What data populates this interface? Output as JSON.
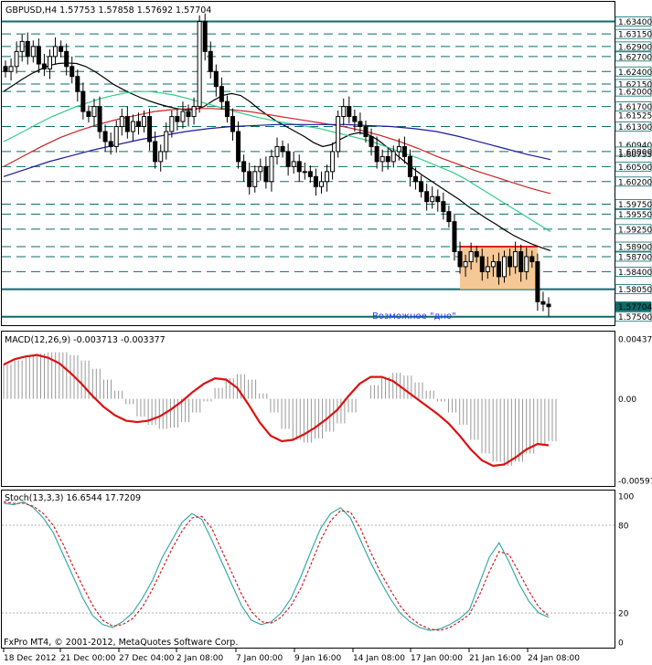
{
  "window": {
    "symbol_line": "GBPUSD,H4  1.57753 1.57858 1.57692 1.57704",
    "watermark": "FxPro MT4, © 2001-2012, MetaQuotes Software Corp."
  },
  "colors": {
    "background": "#ffffff",
    "candle": "#000000",
    "level_line": "#0b6b6b",
    "ma_black": "#000000",
    "ma_green": "#33cc88",
    "ma_red": "#cc2222",
    "ma_blue": "#1a1a99",
    "zone_fill": "#f5c896",
    "resistance": "#e02020",
    "annotation": "#1c3cff",
    "macd_hist": "#999999",
    "macd_signal": "#dd1111",
    "stoch_main": "#2ba3a3",
    "stoch_signal": "#cc1111",
    "price_tag": "#0b6b6b"
  },
  "chart_data": [
    {
      "type": "candlestick",
      "panel": "price",
      "title": "GBPUSD,H4  1.57753 1.57858 1.57692 1.57704",
      "ylim": [
        1.5744,
        1.6355
      ],
      "price_labels": [
        "1.63400",
        "1.63150",
        "1.62900",
        "1.62700",
        "1.62400",
        "1.62150",
        "1.62000",
        "1.61700",
        "1.61525",
        "1.61300",
        "1.60940",
        "1.60800",
        "1.60755",
        "1.60500",
        "1.60200",
        "1.59750",
        "1.59550",
        "1.59250",
        "1.58900",
        "1.58700",
        "1.58400",
        "1.58050",
        "1.57704",
        "1.57500"
      ],
      "levels": [
        1.634,
        1.6315,
        1.629,
        1.627,
        1.624,
        1.6215,
        1.62,
        1.617,
        1.613,
        1.608,
        1.605,
        1.602,
        1.5975,
        1.5955,
        1.5925,
        1.589,
        1.587,
        1.584,
        1.5805,
        1.575
      ],
      "solid_levels": [
        1.634,
        1.5805,
        1.575
      ],
      "current_price": "1.57704",
      "resistance": 1.589,
      "zone": {
        "from_price": 1.5805,
        "to_price": 1.589
      },
      "annotation": "Возможное \"дно\"",
      "x_labels": [
        "18 Dec 2012",
        "21 Dec 00:00",
        "27 Dec 04:00",
        "2 Jan 08:00",
        "7 Jan 00:00",
        "9 Jan 16:00",
        "14 Jan 08:00",
        "17 Jan 00:00",
        "21 Jan 16:00",
        "24 Jan 08:00"
      ],
      "closes": [
        1.624,
        1.625,
        1.628,
        1.63,
        1.627,
        1.629,
        1.6255,
        1.6245,
        1.627,
        1.629,
        1.628,
        1.625,
        1.623,
        1.62,
        1.616,
        1.615,
        1.617,
        1.612,
        1.61,
        1.609,
        1.613,
        1.615,
        1.612,
        1.614,
        1.613,
        1.615,
        1.61,
        1.606,
        1.608,
        1.612,
        1.615,
        1.614,
        1.616,
        1.615,
        1.617,
        1.634,
        1.628,
        1.624,
        1.621,
        1.618,
        1.615,
        1.612,
        1.606,
        1.604,
        1.601,
        1.604,
        1.605,
        1.602,
        1.607,
        1.609,
        1.608,
        1.605,
        1.606,
        1.604,
        1.604,
        1.603,
        1.601,
        1.602,
        1.604,
        1.608,
        1.615,
        1.617,
        1.615,
        1.614,
        1.613,
        1.611,
        1.609,
        1.606,
        1.607,
        1.606,
        1.608,
        1.609,
        1.607,
        1.603,
        1.602,
        1.6,
        1.598,
        1.599,
        1.598,
        1.596,
        1.594,
        1.588,
        1.585,
        1.586,
        1.588,
        1.587,
        1.584,
        1.585,
        1.586,
        1.583,
        1.587,
        1.585,
        1.588,
        1.584,
        1.587,
        1.586,
        1.578,
        1.5775,
        1.577
      ],
      "series": [
        {
          "name": "",
          "color_key": "ma_black",
          "values": [
            1.62,
            1.6212,
            1.6224,
            1.6235,
            1.6244,
            1.6252,
            1.6256,
            1.6257,
            1.6256,
            1.625,
            1.624,
            1.6228,
            1.6215,
            1.6205,
            1.6196,
            1.6188,
            1.6181,
            1.6175,
            1.617,
            1.6166,
            1.6163,
            1.6164,
            1.617,
            1.6182,
            1.6192,
            1.6196,
            1.6192,
            1.618,
            1.6165,
            1.6152,
            1.614,
            1.613,
            1.612,
            1.611,
            1.6098,
            1.609,
            1.6094,
            1.6105,
            1.6114,
            1.6118,
            1.6114,
            1.6104,
            1.609,
            1.6075,
            1.606,
            1.6045,
            1.6032,
            1.602,
            1.6008,
            1.5996,
            1.5984,
            1.597,
            1.5958,
            1.5946,
            1.5935,
            1.5923,
            1.5912,
            1.5903,
            1.5895,
            1.5888,
            1.5882
          ]
        },
        {
          "name": "",
          "color_key": "ma_green",
          "values": [
            1.61,
            1.6112,
            1.6125,
            1.6138,
            1.615,
            1.616,
            1.617,
            1.6178,
            1.6186,
            1.6192,
            1.6197,
            1.62,
            1.62,
            1.6197,
            1.6193,
            1.6187,
            1.618,
            1.6174,
            1.6167,
            1.616,
            1.6154,
            1.6148,
            1.6143,
            1.6138,
            1.6134,
            1.613,
            1.6126,
            1.612,
            1.6114,
            1.6108,
            1.6102,
            1.6094,
            1.6085,
            1.6076,
            1.6068,
            1.6058,
            1.6048,
            1.6038,
            1.6025,
            1.601,
            1.5995,
            1.598,
            1.5965,
            1.595,
            1.5935,
            1.592
          ]
        },
        {
          "name": "",
          "color_key": "ma_red",
          "values": [
            1.605,
            1.607,
            1.609,
            1.6108,
            1.6122,
            1.6134,
            1.6144,
            1.6152,
            1.616,
            1.6164,
            1.6166,
            1.6166,
            1.6164,
            1.616,
            1.6154,
            1.6148,
            1.6142,
            1.6136,
            1.613,
            1.6122,
            1.6112,
            1.61,
            1.6086,
            1.607,
            1.6056,
            1.6042,
            1.603,
            1.6018,
            1.6006,
            1.5996
          ]
        },
        {
          "name": "",
          "color_key": "ma_blue",
          "values": [
            1.603,
            1.6045,
            1.606,
            1.6072,
            1.6084,
            1.6094,
            1.6104,
            1.6112,
            1.612,
            1.6126,
            1.613,
            1.6132,
            1.6134,
            1.6134,
            1.6134,
            1.6134,
            1.6132,
            1.613,
            1.6126,
            1.612,
            1.611,
            1.6098,
            1.6086,
            1.6074,
            1.6064
          ]
        }
      ]
    },
    {
      "type": "histogram_line",
      "panel": "macd",
      "title": "MACD(12,26,9) -0.003713 -0.003377",
      "tick_labels": [
        "0.004379",
        "0.00",
        "-0.00597"
      ],
      "ylim": [
        -0.00597,
        0.004379
      ],
      "histogram": [
        0.0025,
        0.0028,
        0.0031,
        0.0033,
        0.0034,
        0.0034,
        0.0032,
        0.0028,
        0.0022,
        0.0014,
        0.0006,
        -0.0004,
        -0.0013,
        -0.0019,
        -0.0022,
        -0.0021,
        -0.0017,
        -0.001,
        -0.0002,
        0.0008,
        0.0015,
        0.0018,
        0.0014,
        0.0004,
        -0.001,
        -0.0022,
        -0.003,
        -0.0032,
        -0.0029,
        -0.0024,
        -0.0018,
        -0.001,
        0.0,
        0.001,
        0.0016,
        0.0019,
        0.0017,
        0.0012,
        0.0006,
        -0.0002,
        -0.001,
        -0.0019,
        -0.003,
        -0.004,
        -0.0046,
        -0.0049,
        -0.0046,
        -0.004,
        -0.0034,
        -0.0031
      ],
      "signal": [
        0.0025,
        0.0029,
        0.0031,
        0.0032,
        0.003,
        0.0026,
        0.0019,
        0.0011,
        0.0002,
        -0.0006,
        -0.0012,
        -0.0016,
        -0.0017,
        -0.0016,
        -0.0013,
        -0.0008,
        -0.0002,
        0.0005,
        0.0011,
        0.0015,
        0.0014,
        0.0008,
        -0.0004,
        -0.0017,
        -0.0027,
        -0.0031,
        -0.003,
        -0.0026,
        -0.0021,
        -0.0015,
        -0.0008,
        0.0002,
        0.0011,
        0.0016,
        0.0016,
        0.0013,
        0.0007,
        0.0001,
        -0.0005,
        -0.0011,
        -0.0018,
        -0.0027,
        -0.0037,
        -0.0045,
        -0.0049,
        -0.0048,
        -0.0043,
        -0.0037,
        -0.0033,
        -0.0034
      ]
    },
    {
      "type": "line",
      "panel": "stochastic",
      "title": "Stoch(13,3,3) 16.6544 17.7209",
      "tick_labels": [
        "100",
        "80",
        "20",
        "0"
      ],
      "ylim": [
        0,
        100
      ],
      "series": [
        {
          "name": "",
          "color_key": "stoch_main",
          "values": [
            95,
            94,
            96,
            92,
            85,
            75,
            60,
            45,
            30,
            18,
            12,
            10,
            14,
            20,
            30,
            42,
            58,
            70,
            82,
            88,
            84,
            70,
            55,
            40,
            25,
            15,
            12,
            14,
            20,
            30,
            45,
            62,
            78,
            88,
            92,
            85,
            70,
            55,
            42,
            30,
            20,
            14,
            10,
            8,
            9,
            12,
            16,
            22,
            40,
            58,
            68,
            55,
            40,
            28,
            20,
            17
          ]
        },
        {
          "name": "",
          "color_key": "stoch_signal",
          "values": [
            96,
            95,
            95,
            93,
            88,
            80,
            67,
            52,
            38,
            25,
            15,
            11,
            12,
            16,
            24,
            36,
            50,
            64,
            76,
            85,
            86,
            78,
            63,
            48,
            33,
            21,
            14,
            13,
            17,
            25,
            37,
            53,
            70,
            83,
            90,
            89,
            78,
            62,
            48,
            36,
            25,
            17,
            12,
            9,
            8,
            10,
            14,
            19,
            32,
            48,
            62,
            60,
            48,
            35,
            24,
            18
          ]
        }
      ]
    }
  ]
}
